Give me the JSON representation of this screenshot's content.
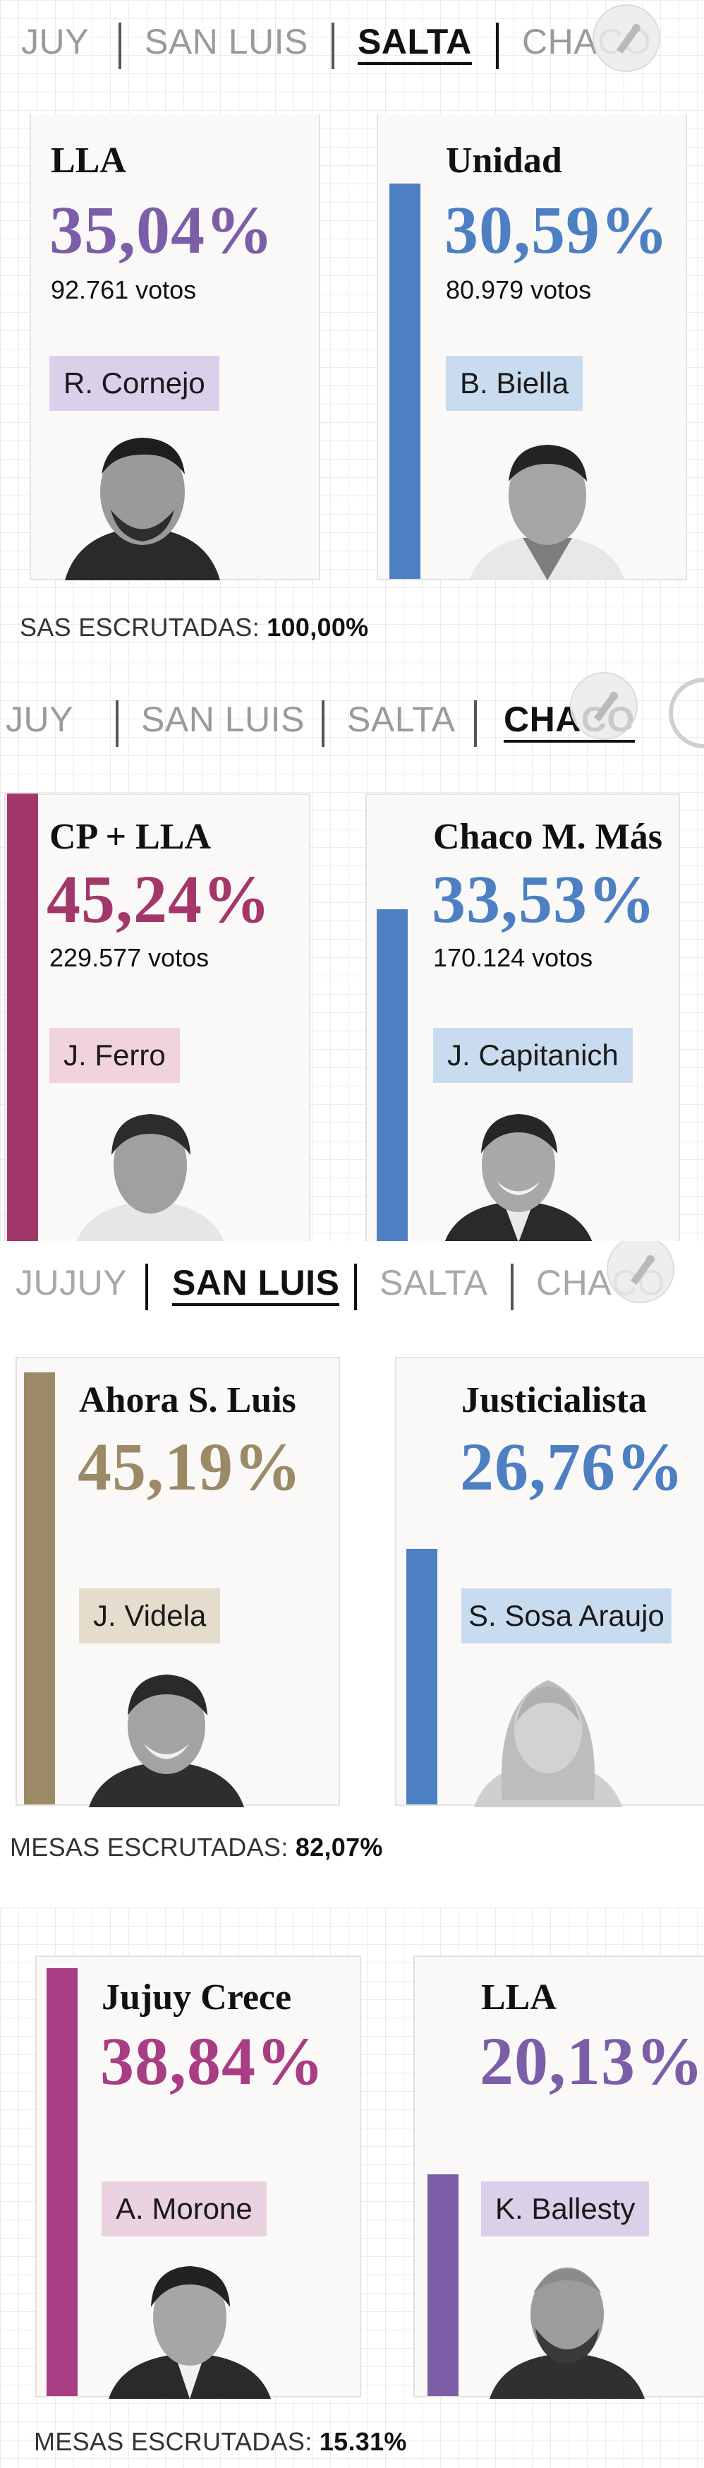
{
  "colors": {
    "lla": "#7b5ea7",
    "unidad": "#4d7fc3",
    "cp_lla": "#a3376a",
    "chaco_mas": "#4d7fc3",
    "ahora_sl": "#9c8a66",
    "justicialista": "#4d7fc3",
    "jujuy_crece": "#a83d83",
    "lla_jujuy": "#7b5ea7"
  },
  "salta": {
    "tabs": {
      "jujuy": "JUY",
      "san_luis": "SAN LUIS",
      "salta": "SALTA",
      "chaco": "CHACO"
    },
    "active_tab": "SALTA",
    "card_left": {
      "party": "LLA",
      "percent": "35,04%",
      "votes": "92.761 votos",
      "candidate": "R. Cornejo"
    },
    "card_right": {
      "party": "Unidad",
      "percent": "30,59%",
      "votes": "80.979 votos",
      "candidate": "B. Biella",
      "bar_fraction": 0.873
    },
    "footer_label": "SAS ESCRUTADAS:",
    "footer_value": "100,00%"
  },
  "chaco": {
    "tabs": {
      "jujuy": "JUY",
      "san_luis": "SAN LUIS",
      "salta": "SALTA",
      "chaco": "CHACO"
    },
    "active_tab": "CHACO",
    "card_left": {
      "party": "CP + LLA",
      "percent": "45,24%",
      "votes": "229.577 votos",
      "candidate": "J. Ferro",
      "bar_fraction": 1.0
    },
    "card_right": {
      "party": "Chaco M. Más",
      "percent": "33,53%",
      "votes": "170.124 votos",
      "candidate": "J. Capitanich",
      "bar_fraction": 0.741
    }
  },
  "san_luis": {
    "tabs": {
      "jujuy": "JUJUY",
      "san_luis": "SAN LUIS",
      "salta": "SALTA",
      "chaco": "CHACO"
    },
    "active_tab": "SAN LUIS",
    "card_left": {
      "party": "Ahora S. Luis",
      "percent": "45,19%",
      "candidate": "J. Videla",
      "bar_fraction": 1.0
    },
    "card_right": {
      "party": "Justicialista",
      "percent": "26,76%",
      "candidate": "S. Sosa Araujo",
      "bar_fraction": 0.592
    },
    "footer_label": "MESAS ESCRUTADAS:",
    "footer_value": "82,07%"
  },
  "jujuy": {
    "card_left": {
      "party": "Jujuy Crece",
      "percent": "38,84%",
      "candidate": "A. Morone",
      "bar_fraction": 1.0
    },
    "card_right": {
      "party": "LLA",
      "percent": "20,13%",
      "candidate": "K. Ballesty",
      "bar_fraction": 0.518
    },
    "footer_label": "MESAS ESCRUTADAS:",
    "footer_value": "15.31%"
  }
}
